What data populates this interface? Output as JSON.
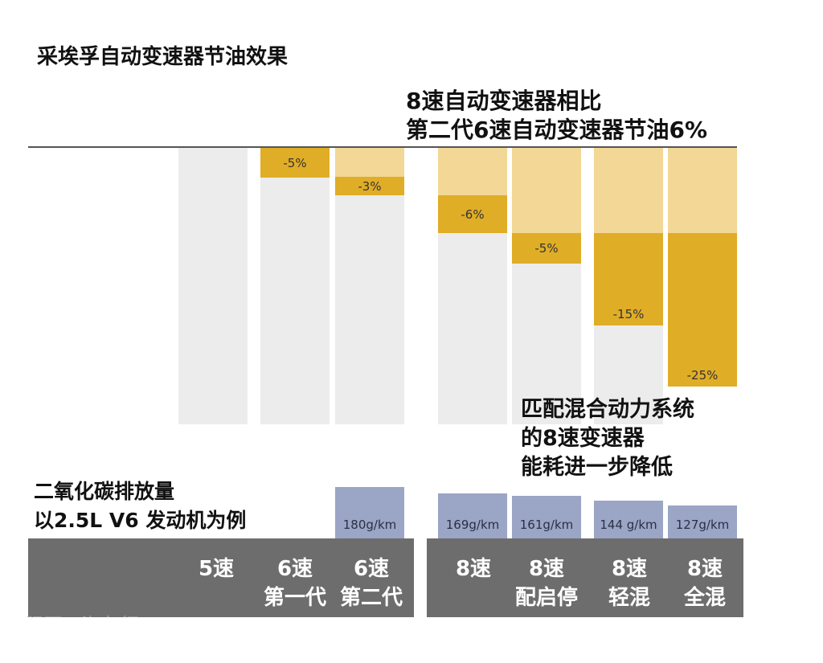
{
  "title": "采埃孚自动变速器节油效果",
  "note": "8速自动变速器相比\n第二代6速自动变速器节油6%",
  "hybrid_note": "匹配混合动力系统\n的8速变速器\n能耗进一步降低",
  "co2_note": "二氧化碳排放量\n以2.5L V6 发动机为例",
  "watermark": "程网 · 汽车行",
  "colors": {
    "base": "#ececec",
    "cumulative_saving": "#f2d796",
    "step_saving": "#e0ad26",
    "co2": "#9ba5c6",
    "band": "#6d6d6d"
  },
  "chart_data": {
    "type": "bar",
    "categories": [
      "5速",
      "6速\n第一代",
      "6速\n第二代",
      "8速",
      "8速\n配启停",
      "8速\n轻混",
      "8速\n全混"
    ],
    "savings": [
      "",
      "-5%",
      "-3%",
      "-6%",
      "-5%",
      "-15%",
      "-25%"
    ],
    "co2": [
      "",
      "",
      "180g/km",
      "169g/km",
      "161g/km",
      "144 g/km",
      "127g/km"
    ],
    "co2_values": [
      null,
      null,
      180,
      169,
      161,
      144,
      127
    ]
  }
}
